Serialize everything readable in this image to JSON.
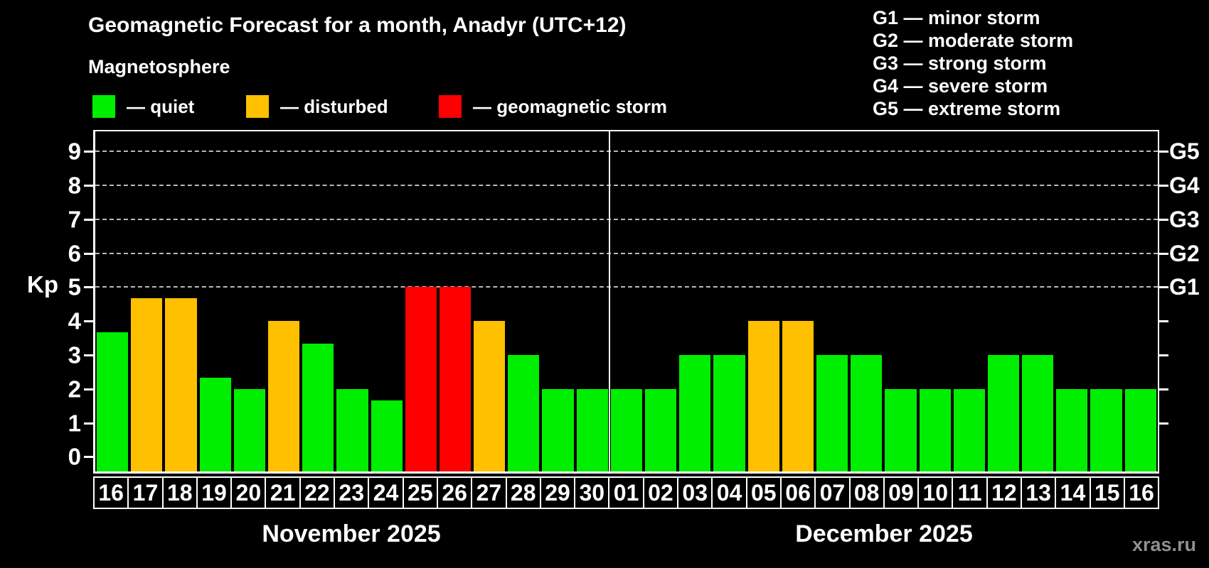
{
  "title": "Geomagnetic Forecast for a month, Anadyr (UTC+12)",
  "subtitle": "Magnetosphere",
  "legend": {
    "items": [
      {
        "status": "quiet",
        "label": "— quiet",
        "color": "#00ee00"
      },
      {
        "status": "disturbed",
        "label": "— disturbed",
        "color": "#ffc000"
      },
      {
        "status": "storm",
        "label": "— geomagnetic storm",
        "color": "#ff0000"
      }
    ]
  },
  "g_legend": [
    "G1 — minor storm",
    "G2 — moderate storm",
    "G3 — strong storm",
    "G4 — severe storm",
    "G5 — extreme storm"
  ],
  "axes": {
    "y_label": "Kp",
    "y_ticks": [
      0,
      1,
      2,
      3,
      4,
      5,
      6,
      7,
      8,
      9
    ],
    "right_ticks": [
      1,
      2,
      3,
      4,
      5,
      6,
      7,
      8,
      9
    ],
    "right_labels": [
      {
        "value": 5,
        "label": "G1"
      },
      {
        "value": 6,
        "label": "G2"
      },
      {
        "value": 7,
        "label": "G3"
      },
      {
        "value": 8,
        "label": "G4"
      },
      {
        "value": 9,
        "label": "G5"
      }
    ]
  },
  "months": [
    {
      "short": "Nov",
      "label": "November 2025"
    },
    {
      "short": "Dec",
      "label": "December 2025"
    }
  ],
  "watermark": "xras.ru",
  "chart_data": {
    "type": "bar",
    "title": "Geomagnetic Forecast for a month, Anadyr (UTC+12)",
    "ylabel": "Kp",
    "ylim": [
      0,
      9
    ],
    "gridlines_at": [
      5,
      6,
      7,
      8,
      9
    ],
    "grid": "dashed horizontal lines at G1–G5 storm levels only",
    "legend_position": "top",
    "colors": {
      "quiet": "#00ee00",
      "disturbed": "#ffc000",
      "storm": "#ff0000"
    },
    "bars": [
      {
        "day": "16",
        "month": "Nov",
        "value": 3.67,
        "status": "quiet"
      },
      {
        "day": "17",
        "month": "Nov",
        "value": 4.67,
        "status": "disturbed"
      },
      {
        "day": "18",
        "month": "Nov",
        "value": 4.67,
        "status": "disturbed"
      },
      {
        "day": "19",
        "month": "Nov",
        "value": 2.33,
        "status": "quiet"
      },
      {
        "day": "20",
        "month": "Nov",
        "value": 2,
        "status": "quiet"
      },
      {
        "day": "21",
        "month": "Nov",
        "value": 4,
        "status": "disturbed"
      },
      {
        "day": "22",
        "month": "Nov",
        "value": 3.33,
        "status": "quiet"
      },
      {
        "day": "23",
        "month": "Nov",
        "value": 2,
        "status": "quiet"
      },
      {
        "day": "24",
        "month": "Nov",
        "value": 1.67,
        "status": "quiet"
      },
      {
        "day": "25",
        "month": "Nov",
        "value": 5,
        "status": "storm"
      },
      {
        "day": "26",
        "month": "Nov",
        "value": 5,
        "status": "storm"
      },
      {
        "day": "27",
        "month": "Nov",
        "value": 4,
        "status": "disturbed"
      },
      {
        "day": "28",
        "month": "Nov",
        "value": 3,
        "status": "quiet"
      },
      {
        "day": "29",
        "month": "Nov",
        "value": 2,
        "status": "quiet"
      },
      {
        "day": "30",
        "month": "Nov",
        "value": 2,
        "status": "quiet"
      },
      {
        "day": "01",
        "month": "Dec",
        "value": 2,
        "status": "quiet"
      },
      {
        "day": "02",
        "month": "Dec",
        "value": 2,
        "status": "quiet"
      },
      {
        "day": "03",
        "month": "Dec",
        "value": 3,
        "status": "quiet"
      },
      {
        "day": "04",
        "month": "Dec",
        "value": 3,
        "status": "quiet"
      },
      {
        "day": "05",
        "month": "Dec",
        "value": 4,
        "status": "disturbed"
      },
      {
        "day": "06",
        "month": "Dec",
        "value": 4,
        "status": "disturbed"
      },
      {
        "day": "07",
        "month": "Dec",
        "value": 3,
        "status": "quiet"
      },
      {
        "day": "08",
        "month": "Dec",
        "value": 3,
        "status": "quiet"
      },
      {
        "day": "09",
        "month": "Dec",
        "value": 2,
        "status": "quiet"
      },
      {
        "day": "10",
        "month": "Dec",
        "value": 2,
        "status": "quiet"
      },
      {
        "day": "11",
        "month": "Dec",
        "value": 2,
        "status": "quiet"
      },
      {
        "day": "12",
        "month": "Dec",
        "value": 3,
        "status": "quiet"
      },
      {
        "day": "13",
        "month": "Dec",
        "value": 3,
        "status": "quiet"
      },
      {
        "day": "14",
        "month": "Dec",
        "value": 2,
        "status": "quiet"
      },
      {
        "day": "15",
        "month": "Dec",
        "value": 2,
        "status": "quiet"
      },
      {
        "day": "16",
        "month": "Dec",
        "value": 2,
        "status": "quiet"
      }
    ]
  }
}
